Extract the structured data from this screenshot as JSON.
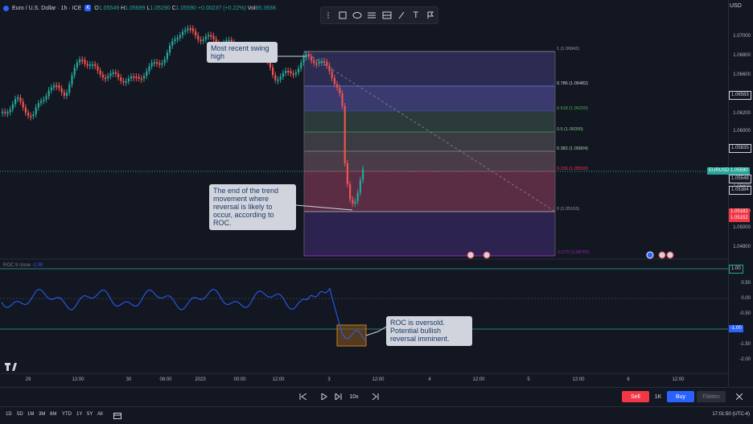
{
  "legend": {
    "title": "Euro / U.S. Dollar · 1h · ICE",
    "badge": "€",
    "o_label": "O",
    "o": "1.05549",
    "h_label": "H",
    "h": "1.05699",
    "l_label": "L",
    "l": "1.05290",
    "c_label": "C",
    "c": "1.05590",
    "change": "+0.00237 (+0.22%)",
    "vol_label": "Vol",
    "vol": "85.393K"
  },
  "currency": "USD",
  "price_axis": [
    "1.07000",
    "1.06800",
    "1.06600",
    "1.06200",
    "1.06000",
    "1.05800",
    "1.05600",
    "1.05200",
    "1.05000",
    "1.04800"
  ],
  "price_labels": {
    "top": "1.06583",
    "mid": "1.05835",
    "symbol": "EURUSD",
    "current": "1.05590",
    "b1": "1.05548",
    "b2": "1.05384",
    "red1": "1.05182",
    "red2": "1.05152"
  },
  "fib_levels": [
    {
      "ratio": "1",
      "price": "(1.06842)",
      "color": "#9598a1"
    },
    {
      "ratio": "0.786",
      "price": "(1.06482)",
      "color": "#d1d4dc"
    },
    {
      "ratio": "0.618",
      "price": "(1.06200)",
      "color": "#4caf50"
    },
    {
      "ratio": "0.5",
      "price": "(1.06000)",
      "color": "#81c784"
    },
    {
      "ratio": "0.382",
      "price": "(1.05804)",
      "color": "#a5d6a7"
    },
    {
      "ratio": "0.236",
      "price": "(1.05559)",
      "color": "#f23645"
    },
    {
      "ratio": "0",
      "price": "(1.05163)",
      "color": "#9598a1"
    },
    {
      "ratio": "-0.272",
      "price": "(1.04707)",
      "color": "#9c27b0"
    }
  ],
  "callouts": {
    "swing_high": "Most recent swing high",
    "trend_end": "The end of the trend movement where reversal is likely to occur, according to ROC.",
    "oversold": "ROC is oversold. Potential bullish reversal imminent."
  },
  "roc": {
    "legend_name": "ROC",
    "legend_params": "9 close",
    "legend_value": "-1.00",
    "axis": [
      "1.00",
      "0.50",
      "0.00",
      "-0.50",
      "-1.00",
      "-1.50",
      "-2.00"
    ],
    "upper_label": "1.00",
    "lower_label": "-1.00"
  },
  "time_axis": [
    "29",
    "12:00",
    "30",
    "06:00",
    "2023",
    "00:00",
    "12:00",
    "3",
    "12:00",
    "4",
    "12:00",
    "5",
    "12:00",
    "6",
    "12:00"
  ],
  "controls": {
    "speed": "10x",
    "sell": "Sell",
    "qty": "1K",
    "buy": "Buy",
    "flatten": "Flatten"
  },
  "timeframes": [
    "1D",
    "5D",
    "1M",
    "3M",
    "6M",
    "YTD",
    "1Y",
    "5Y",
    "All"
  ],
  "clock": "17:01:50 (UTC-4)",
  "colors": {
    "up": "#26a69a",
    "down": "#ef5350",
    "roc_line": "#2962ff",
    "fib_zone": "#7e57c2",
    "red_zone": "#b2385b"
  }
}
